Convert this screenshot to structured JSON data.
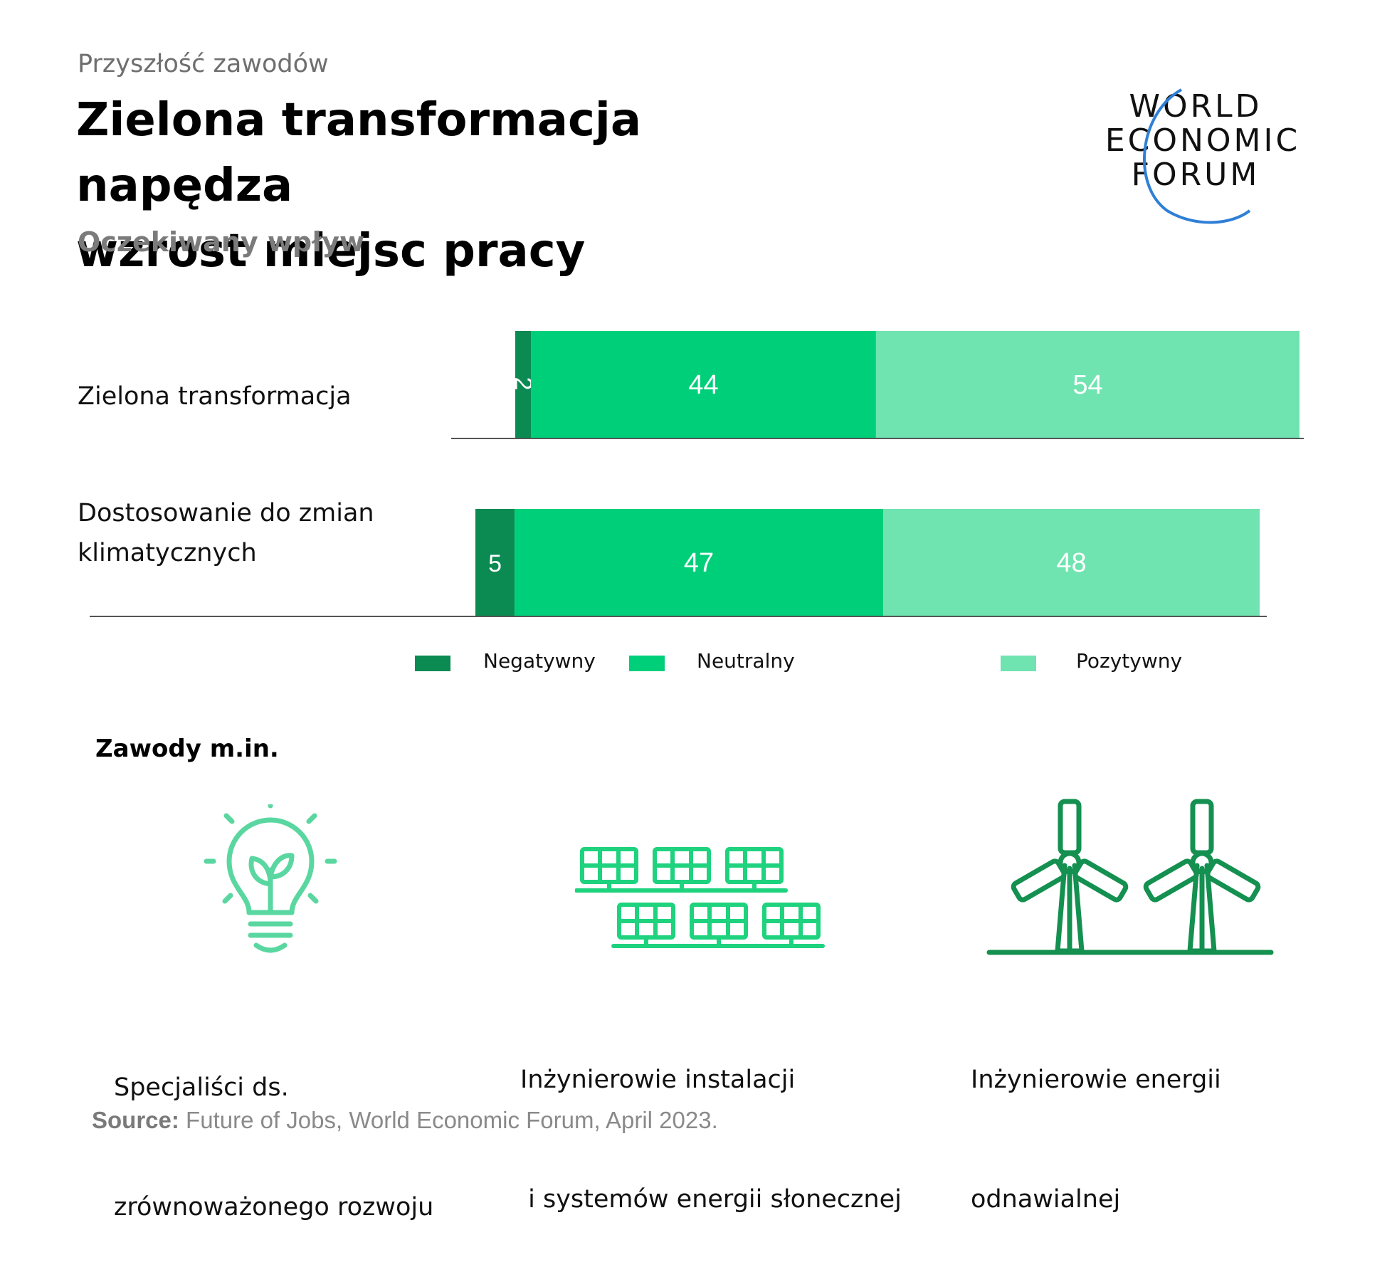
{
  "header": {
    "kicker": "Przyszłość zawodów",
    "title_line1": "Zielona transformacja napędza",
    "title_line2": "wzrost miejsc pracy",
    "subtitle": "Oczekiwany wpływ"
  },
  "logo": {
    "line1": "WORLD",
    "line2": "ECONOMIC",
    "line3": "FORUM",
    "arc_color": "#2f7fd6"
  },
  "chart_data": {
    "type": "bar",
    "orientation": "horizontal",
    "stacked": true,
    "categories": [
      "Zielona transformacja",
      "Dostosowanie do zmian klimatycznych"
    ],
    "category_label_lines": [
      [
        "Zielona transformacja"
      ],
      [
        "Dostosowanie do zmian",
        "klimatycznych"
      ]
    ],
    "series": [
      {
        "name": "Negatywny",
        "values": [
          2,
          5
        ],
        "color": "#0b8a52"
      },
      {
        "name": "Neutralny",
        "values": [
          44,
          47
        ],
        "color": "#00cf7a"
      },
      {
        "name": "Pozytywny",
        "values": [
          54,
          48
        ],
        "color": "#6fe3b0"
      }
    ],
    "value_labels": [
      [
        "2",
        "44",
        "54"
      ],
      [
        "5",
        "47",
        "48"
      ]
    ],
    "legend": {
      "position": "bottom",
      "entries": [
        "Negatywny",
        "Neutralny",
        "Pozytywny"
      ]
    },
    "grid": false
  },
  "jobs": {
    "heading": "Zawody m.in.",
    "items": [
      {
        "icon": "lightbulb-icon",
        "line1": "Specjaliści ds.",
        "line2": "zrównoważonego rozwoju",
        "color": "#5ad7a0"
      },
      {
        "icon": "solar-panels-icon",
        "line1": "Inżynierowie instalacji",
        "line2": " i systemów energii słonecznej",
        "color": "#1ed27e"
      },
      {
        "icon": "wind-turbines-icon",
        "line1": "Inżynierowie energii",
        "line2": "odnawialnej",
        "color": "#149050"
      }
    ]
  },
  "source": {
    "label": "Source:",
    "text": " Future of Jobs, World Economic Forum, April 2023."
  }
}
